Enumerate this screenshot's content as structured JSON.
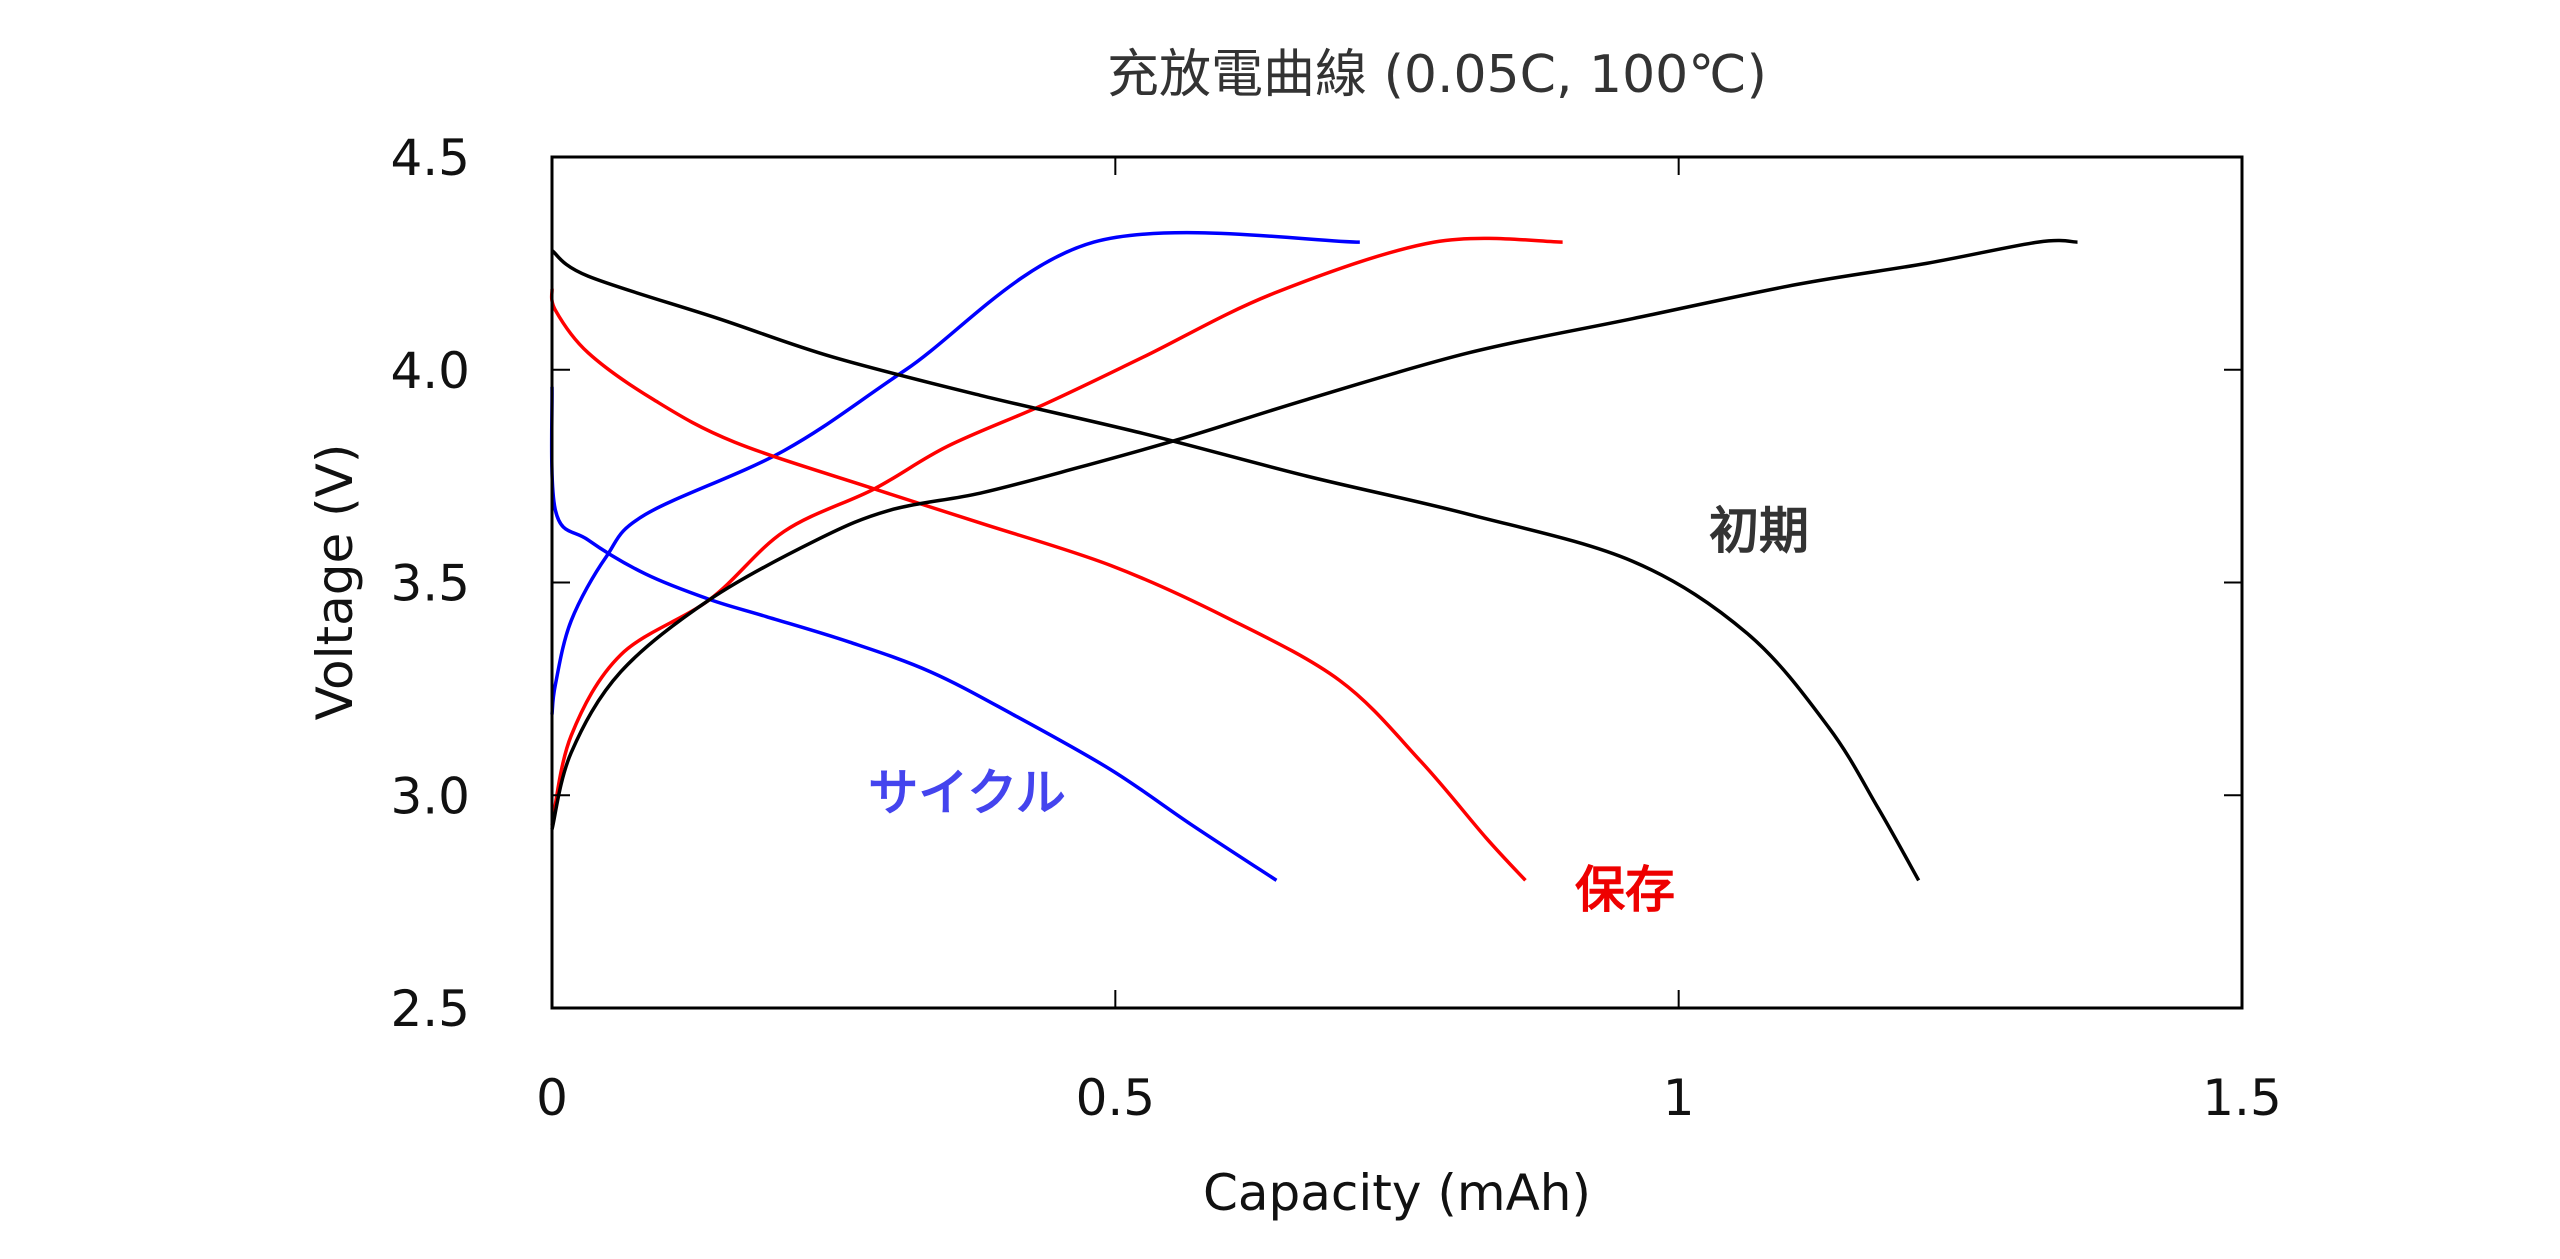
{
  "chart_data": {
    "type": "line",
    "title": "充放電曲線 (0.05C, 100℃)",
    "xlabel": "Capacity (mAh)",
    "ylabel": "Voltage (V)",
    "xlim": [
      0,
      1.5
    ],
    "ylim": [
      2.5,
      4.5
    ],
    "xticks": [
      "0",
      "0.5",
      "1",
      "1.5"
    ],
    "xtick_values": [
      0,
      0.5,
      1,
      1.5
    ],
    "yticks": [
      "2.5",
      "3.0",
      "3.5",
      "4.0",
      "4.5"
    ],
    "ytick_values": [
      2.5,
      3.0,
      3.5,
      4.0,
      4.5
    ],
    "grid": false,
    "series": [
      {
        "name": "サイクル",
        "color": "#0000ff",
        "label_color": "#4444ee",
        "curve": "charge",
        "x": [
          0,
          0.003,
          0.017,
          0.048,
          0.083,
          0.206,
          0.314,
          0.481,
          0.717
        ],
        "y": [
          3.19,
          3.26,
          3.41,
          3.56,
          3.66,
          3.81,
          4.0,
          4.3,
          4.3
        ]
      },
      {
        "name": "サイクル",
        "color": "#0000ff",
        "curve": "discharge",
        "x": [
          0,
          0.003,
          0.032,
          0.083,
          0.14,
          0.19,
          0.264,
          0.336,
          0.409,
          0.496,
          0.568,
          0.643
        ],
        "y": [
          3.96,
          3.67,
          3.6,
          3.52,
          3.46,
          3.42,
          3.36,
          3.29,
          3.19,
          3.06,
          2.93,
          2.8
        ]
      },
      {
        "name": "保存",
        "color": "#ff0000",
        "label_color": "#ee0000",
        "curve": "charge",
        "x": [
          0,
          0.017,
          0.061,
          0.14,
          0.206,
          0.286,
          0.351,
          0.438,
          0.525,
          0.641,
          0.783,
          0.897
        ],
        "y": [
          2.93,
          3.14,
          3.33,
          3.46,
          3.62,
          3.72,
          3.82,
          3.92,
          4.03,
          4.18,
          4.3,
          4.3
        ]
      },
      {
        "name": "保存",
        "color": "#ff0000",
        "curve": "discharge",
        "x": [
          0,
          0.003,
          0.032,
          0.09,
          0.162,
          0.286,
          0.38,
          0.496,
          0.597,
          0.699,
          0.771,
          0.829,
          0.864
        ],
        "y": [
          4.19,
          4.14,
          4.04,
          3.93,
          3.83,
          3.72,
          3.64,
          3.54,
          3.42,
          3.27,
          3.08,
          2.9,
          2.8
        ]
      },
      {
        "name": "初期",
        "color": "#000000",
        "label_color": "#333333",
        "curve": "charge",
        "x": [
          0,
          0.017,
          0.061,
          0.14,
          0.235,
          0.3,
          0.38,
          0.467,
          0.561,
          0.67,
          0.814,
          0.959,
          1.104,
          1.22,
          1.319,
          1.354
        ],
        "y": [
          2.92,
          3.1,
          3.29,
          3.46,
          3.6,
          3.67,
          3.71,
          3.77,
          3.84,
          3.93,
          4.04,
          4.12,
          4.2,
          4.25,
          4.3,
          4.3
        ]
      },
      {
        "name": "初期",
        "color": "#000000",
        "curve": "discharge",
        "x": [
          0,
          0.032,
          0.148,
          0.249,
          0.38,
          0.525,
          0.67,
          0.814,
          0.959,
          1.061,
          1.133,
          1.177,
          1.213
        ],
        "y": [
          4.28,
          4.22,
          4.12,
          4.03,
          3.94,
          3.85,
          3.75,
          3.66,
          3.55,
          3.38,
          3.16,
          2.97,
          2.8
        ]
      }
    ],
    "series_labels": [
      "サイクル",
      "保存",
      "初期"
    ]
  }
}
